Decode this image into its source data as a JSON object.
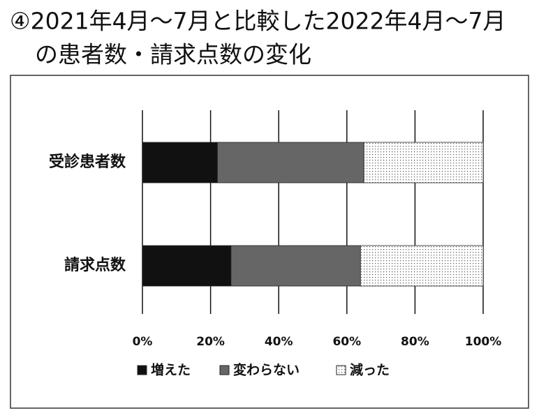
{
  "chart_data": {
    "type": "stacked-barh",
    "title": [
      "④2021年4月〜7月と比較した2022年4月〜7月",
      "の患者数・請求点数の変化"
    ],
    "categories": [
      "受診患者数",
      "請求点数"
    ],
    "series": [
      {
        "name": "増えた",
        "color": "#111111",
        "values": [
          22,
          26
        ]
      },
      {
        "name": "変わらない",
        "color": "#666666",
        "values": [
          43,
          38
        ]
      },
      {
        "name": "減った",
        "color": "#ffffff",
        "pattern": "dots",
        "values": [
          35,
          36
        ]
      }
    ],
    "xlim": [
      0,
      100
    ],
    "xticks": [
      {
        "value": 0,
        "label": "0%"
      },
      {
        "value": 20,
        "label": "20%"
      },
      {
        "value": 40,
        "label": "40%"
      },
      {
        "value": 60,
        "label": "60%"
      },
      {
        "value": 80,
        "label": "80%"
      },
      {
        "value": 100,
        "label": "100%"
      }
    ],
    "grid": true,
    "legend": "bottom"
  }
}
